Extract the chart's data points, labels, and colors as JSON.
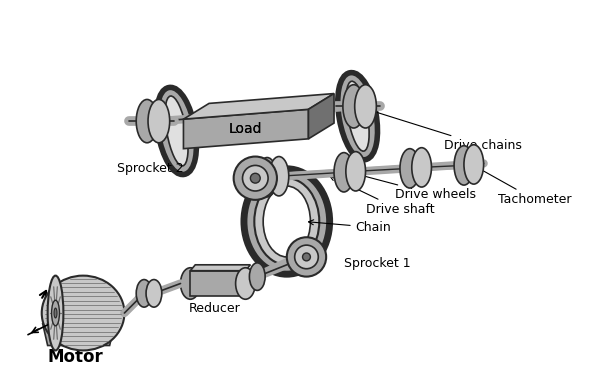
{
  "bg": "#ffffff",
  "cl": "#c8c8c8",
  "cm": "#a8a8a8",
  "cd": "#707070",
  "ce": "#2a2a2a",
  "cw": "#e0e0e0",
  "labels": {
    "load": "Load",
    "drive_chains": "Drive chains",
    "tachometer": "Tachometer",
    "drive_wheels": "Drive wheels",
    "drive_shaft": "Drive shaft",
    "chain": "Chain",
    "sprocket2": "Sprocket 2",
    "sprocket1": "Sprocket 1",
    "reducer": "Reducer",
    "motor": "Motor"
  },
  "fs": 9,
  "fs_motor": 12
}
